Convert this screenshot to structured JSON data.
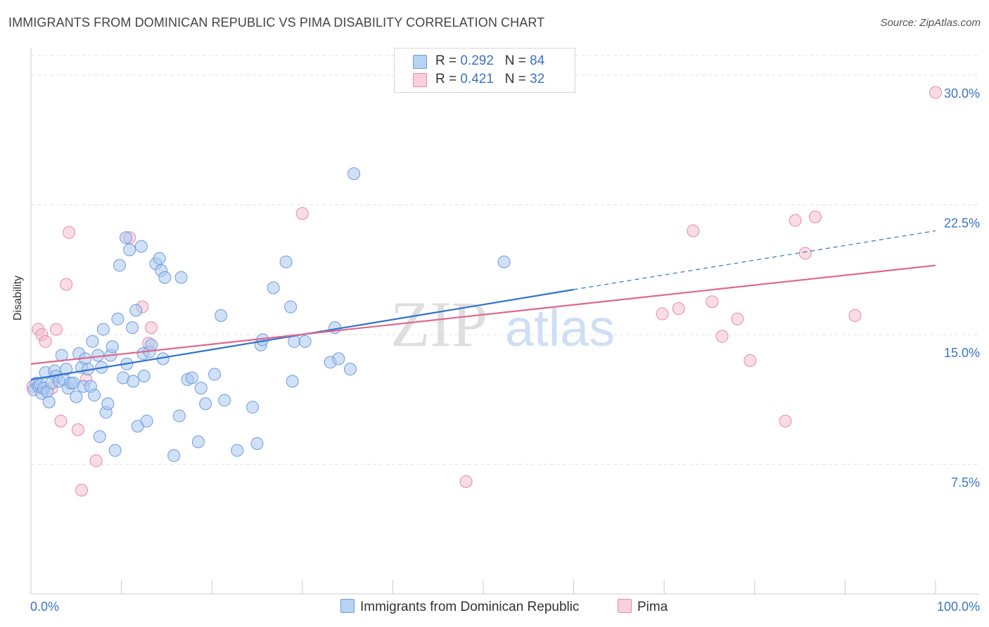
{
  "header": {
    "title": "IMMIGRANTS FROM DOMINICAN REPUBLIC VS PIMA DISABILITY CORRELATION CHART",
    "source": "Source: ZipAtlas.com"
  },
  "legend": {
    "rows": [
      {
        "r_label": "R = ",
        "r_value": "0.292",
        "n_label": "N = ",
        "n_value": "84"
      },
      {
        "r_label": "R = ",
        "r_value": "0.421",
        "n_label": "N = ",
        "n_value": "32"
      }
    ]
  },
  "watermark": {
    "zip": "ZIP",
    "atlas": "atlas"
  },
  "colors": {
    "blue_fill": "#a9c8f0",
    "blue_stroke": "#6f9bdc",
    "blue_line": "#2f72cc",
    "pink_fill": "#f6bfd0",
    "pink_stroke": "#e58aa8",
    "pink_line": "#e0668f",
    "tick_text": "#3b73c8",
    "grid": "#e3e3e3"
  },
  "chart_data": {
    "type": "scatter",
    "title": "IMMIGRANTS FROM DOMINICAN REPUBLIC VS PIMA DISABILITY CORRELATION CHART",
    "xlabel": "",
    "ylabel": "Disability",
    "xlim": [
      0,
      100
    ],
    "ylim": [
      0,
      31.5
    ],
    "x_tick_labels": [
      "0.0%",
      "100.0%"
    ],
    "y_ticks": [
      7.5,
      15.0,
      22.5,
      30.0
    ],
    "y_tick_labels": [
      "7.5%",
      "15.0%",
      "22.5%",
      "30.0%"
    ],
    "grid": true,
    "legend_position": "top-center",
    "series": [
      {
        "name": "Immigrants from Dominican Republic",
        "color": "#a9c8f0",
        "r": 0.292,
        "n": 84,
        "trend": {
          "x": [
            0,
            60
          ],
          "y": [
            12.4,
            17.6
          ],
          "dashed_to": [
            100,
            21.0
          ]
        },
        "points": [
          [
            0.3,
            11.8
          ],
          [
            0.6,
            12.2
          ],
          [
            0.8,
            12.0
          ],
          [
            1.0,
            12.1
          ],
          [
            1.2,
            11.6
          ],
          [
            1.4,
            11.9
          ],
          [
            1.6,
            12.8
          ],
          [
            1.8,
            11.7
          ],
          [
            2.0,
            11.1
          ],
          [
            2.3,
            12.2
          ],
          [
            2.6,
            12.9
          ],
          [
            2.8,
            12.6
          ],
          [
            3.1,
            12.3
          ],
          [
            3.4,
            13.8
          ],
          [
            3.6,
            12.4
          ],
          [
            3.9,
            13.0
          ],
          [
            4.1,
            11.9
          ],
          [
            4.4,
            12.2
          ],
          [
            4.7,
            12.2
          ],
          [
            5.0,
            11.4
          ],
          [
            5.3,
            13.9
          ],
          [
            5.6,
            13.1
          ],
          [
            5.8,
            12.0
          ],
          [
            6.0,
            13.6
          ],
          [
            6.3,
            13.0
          ],
          [
            6.6,
            12.0
          ],
          [
            6.8,
            14.6
          ],
          [
            7.0,
            11.5
          ],
          [
            7.4,
            13.8
          ],
          [
            7.6,
            9.1
          ],
          [
            7.8,
            13.1
          ],
          [
            8.0,
            15.3
          ],
          [
            8.3,
            10.5
          ],
          [
            8.5,
            11.0
          ],
          [
            8.8,
            13.8
          ],
          [
            9.0,
            14.3
          ],
          [
            9.3,
            8.3
          ],
          [
            9.6,
            15.9
          ],
          [
            9.8,
            19.0
          ],
          [
            10.2,
            12.5
          ],
          [
            10.5,
            20.6
          ],
          [
            10.6,
            13.3
          ],
          [
            10.9,
            19.9
          ],
          [
            11.2,
            15.4
          ],
          [
            11.3,
            12.3
          ],
          [
            11.6,
            16.4
          ],
          [
            11.8,
            9.7
          ],
          [
            12.2,
            20.1
          ],
          [
            12.4,
            13.9
          ],
          [
            12.5,
            12.6
          ],
          [
            12.8,
            10.0
          ],
          [
            13.1,
            14.0
          ],
          [
            13.3,
            14.4
          ],
          [
            13.8,
            19.1
          ],
          [
            14.2,
            19.4
          ],
          [
            14.4,
            18.7
          ],
          [
            14.6,
            13.6
          ],
          [
            14.8,
            18.3
          ],
          [
            15.8,
            8.0
          ],
          [
            16.4,
            10.3
          ],
          [
            16.6,
            18.3
          ],
          [
            17.3,
            12.4
          ],
          [
            17.8,
            12.5
          ],
          [
            18.5,
            8.8
          ],
          [
            18.8,
            11.9
          ],
          [
            19.3,
            11.0
          ],
          [
            20.3,
            12.7
          ],
          [
            21.0,
            16.1
          ],
          [
            21.4,
            11.2
          ],
          [
            22.8,
            8.3
          ],
          [
            24.5,
            10.8
          ],
          [
            25.0,
            8.7
          ],
          [
            25.4,
            14.4
          ],
          [
            25.6,
            14.7
          ],
          [
            26.8,
            17.7
          ],
          [
            28.2,
            19.2
          ],
          [
            28.7,
            16.6
          ],
          [
            28.9,
            12.3
          ],
          [
            29.1,
            14.6
          ],
          [
            30.3,
            14.6
          ],
          [
            33.1,
            13.4
          ],
          [
            33.6,
            15.4
          ],
          [
            34.0,
            13.6
          ],
          [
            35.3,
            13.0
          ],
          [
            35.7,
            24.3
          ],
          [
            52.3,
            19.2
          ]
        ]
      },
      {
        "name": "Pima",
        "color": "#f6bfd0",
        "r": 0.421,
        "n": 32,
        "trend": {
          "x": [
            0,
            100
          ],
          "y": [
            13.3,
            19.0
          ]
        },
        "points": [
          [
            0.2,
            12.0
          ],
          [
            0.8,
            15.3
          ],
          [
            1.2,
            15.0
          ],
          [
            1.6,
            14.6
          ],
          [
            2.3,
            11.9
          ],
          [
            2.8,
            15.3
          ],
          [
            3.3,
            10.0
          ],
          [
            3.9,
            17.9
          ],
          [
            4.2,
            20.9
          ],
          [
            5.2,
            9.5
          ],
          [
            5.6,
            6.0
          ],
          [
            6.1,
            12.4
          ],
          [
            7.2,
            7.7
          ],
          [
            10.9,
            20.6
          ],
          [
            12.3,
            16.6
          ],
          [
            13.0,
            14.5
          ],
          [
            13.3,
            15.4
          ],
          [
            30.0,
            22.0
          ],
          [
            48.1,
            6.5
          ],
          [
            69.8,
            16.2
          ],
          [
            71.6,
            16.5
          ],
          [
            73.2,
            21.0
          ],
          [
            75.3,
            16.9
          ],
          [
            76.4,
            14.9
          ],
          [
            78.1,
            15.9
          ],
          [
            79.5,
            13.5
          ],
          [
            83.4,
            10.0
          ],
          [
            84.5,
            21.6
          ],
          [
            85.6,
            19.7
          ],
          [
            86.7,
            21.8
          ],
          [
            91.1,
            16.1
          ],
          [
            100.0,
            29.0
          ]
        ]
      }
    ]
  }
}
